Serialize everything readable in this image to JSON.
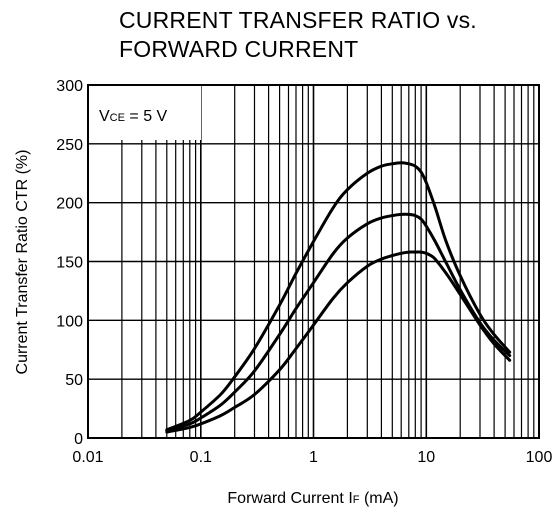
{
  "title_lines": [
    "CURRENT TRANSFER RATIO vs.",
    "FORWARD CURRENT"
  ],
  "chart_data": {
    "type": "line",
    "xscale": "log",
    "xlim": [
      0.01,
      100
    ],
    "ylim": [
      0,
      300
    ],
    "grid": true,
    "x_ticks": [
      {
        "value": 0.01,
        "label": "0.01"
      },
      {
        "value": 0.1,
        "label": "0.1"
      },
      {
        "value": 1,
        "label": "1"
      },
      {
        "value": 10,
        "label": "10"
      },
      {
        "value": 100,
        "label": "100"
      }
    ],
    "y_ticks": [
      {
        "value": 0,
        "label": "0"
      },
      {
        "value": 50,
        "label": "50"
      },
      {
        "value": 100,
        "label": "100"
      },
      {
        "value": 150,
        "label": "150"
      },
      {
        "value": 200,
        "label": "200"
      },
      {
        "value": 250,
        "label": "250"
      },
      {
        "value": 300,
        "label": "300"
      }
    ],
    "xlabel": {
      "main": "Forward Current  I",
      "sub": "F",
      "unit": " (mA)"
    },
    "ylabel": "Current Transfer Ratio  CTR (%)",
    "annotation": {
      "main": "V",
      "sub": "CE",
      "rest": " = 5 V"
    },
    "series": [
      {
        "x": [
          0.05,
          0.08,
          0.1,
          0.15,
          0.2,
          0.3,
          0.5,
          0.7,
          1,
          1.5,
          2,
          3,
          4,
          5,
          6,
          7,
          8,
          9,
          10,
          12,
          15,
          20,
          30,
          40,
          55
        ],
        "values": [
          7,
          15,
          22,
          37,
          52,
          76,
          113,
          140,
          167,
          196,
          211,
          225,
          231,
          233,
          234,
          233,
          231,
          226,
          217,
          196,
          167,
          138,
          105,
          88,
          73
        ]
      },
      {
        "x": [
          0.05,
          0.08,
          0.1,
          0.15,
          0.2,
          0.3,
          0.5,
          0.7,
          1,
          1.5,
          2,
          3,
          4,
          5,
          6,
          7,
          8,
          9,
          10,
          12,
          15,
          20,
          30,
          40,
          55
        ],
        "values": [
          6,
          12,
          17,
          28,
          39,
          57,
          88,
          110,
          132,
          157,
          170,
          182,
          187,
          189,
          190,
          190,
          189,
          186,
          180,
          167,
          149,
          126,
          98,
          83,
          70
        ]
      },
      {
        "x": [
          0.05,
          0.08,
          0.1,
          0.15,
          0.2,
          0.3,
          0.5,
          0.7,
          1,
          1.5,
          2,
          3,
          4,
          5,
          6,
          7,
          8,
          9,
          10,
          11,
          12,
          15,
          20,
          30,
          40,
          55
        ],
        "values": [
          5,
          9,
          12,
          19,
          26,
          37,
          58,
          76,
          96,
          119,
          132,
          146,
          152,
          155,
          157,
          158,
          158,
          158,
          157,
          155,
          152,
          140,
          122,
          96,
          80,
          66
        ]
      }
    ]
  }
}
